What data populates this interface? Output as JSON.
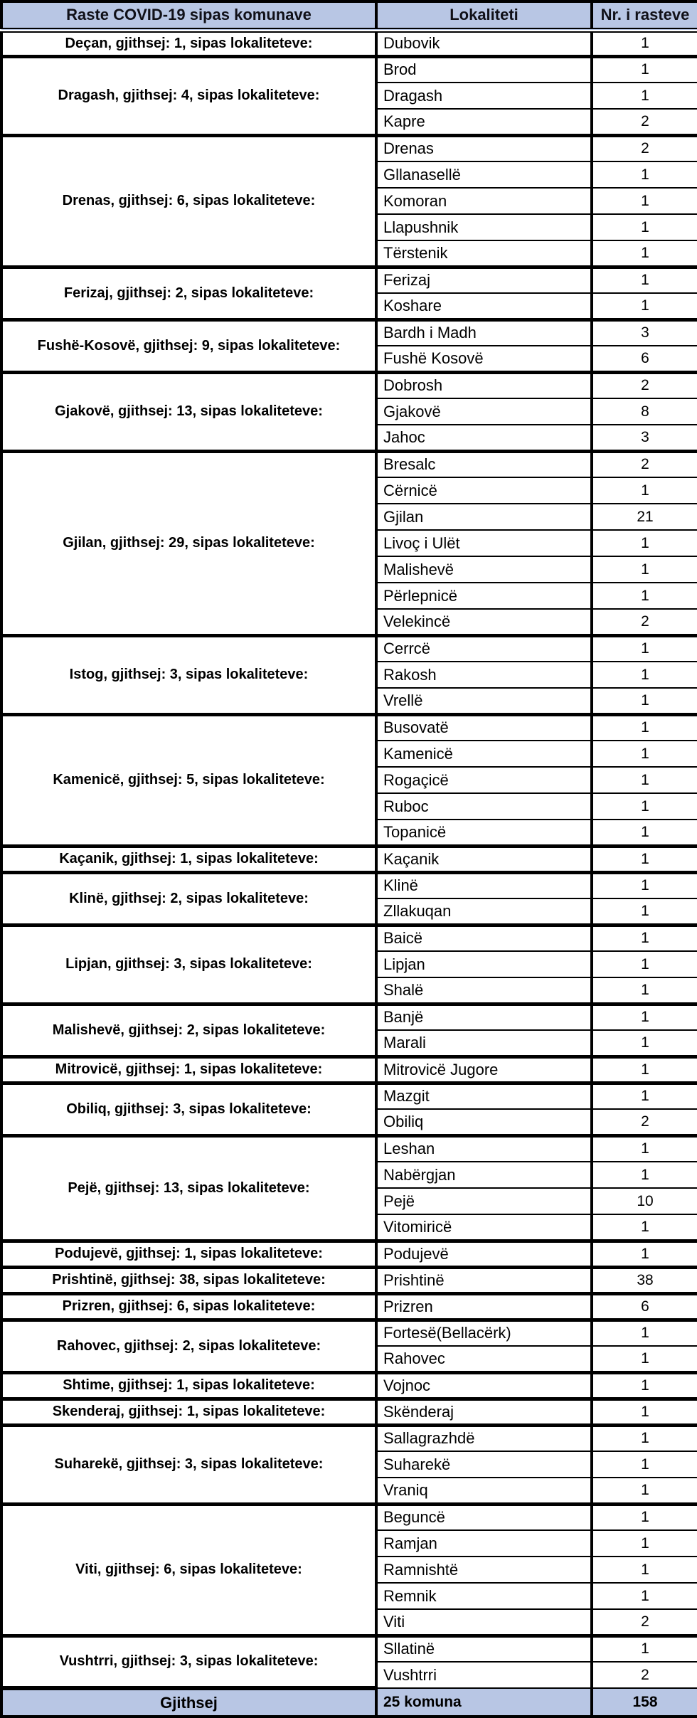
{
  "colors": {
    "header_bg": "#b8c6e4",
    "row_bg": "#ffffff",
    "border": "#000000",
    "text": "#000000"
  },
  "table": {
    "headers": [
      "Raste COVID-19 sipas komunave",
      "Lokaliteti",
      "Nr. i rasteve"
    ],
    "groups": [
      {
        "label": "Deçan, gjithsej: 1, sipas lokaliteteve:",
        "rows": [
          {
            "lokaliteti": "Dubovik",
            "raste": 1
          }
        ]
      },
      {
        "label": "Dragash, gjithsej: 4, sipas lokaliteteve:",
        "rows": [
          {
            "lokaliteti": "Brod",
            "raste": 1
          },
          {
            "lokaliteti": "Dragash",
            "raste": 1
          },
          {
            "lokaliteti": "Kapre",
            "raste": 2
          }
        ]
      },
      {
        "label": "Drenas, gjithsej: 6, sipas lokaliteteve:",
        "rows": [
          {
            "lokaliteti": "Drenas",
            "raste": 2
          },
          {
            "lokaliteti": "Gllanasellë",
            "raste": 1
          },
          {
            "lokaliteti": "Komoran",
            "raste": 1
          },
          {
            "lokaliteti": "Llapushnik",
            "raste": 1
          },
          {
            "lokaliteti": "Tërstenik",
            "raste": 1
          }
        ]
      },
      {
        "label": "Ferizaj, gjithsej: 2, sipas lokaliteteve:",
        "rows": [
          {
            "lokaliteti": "Ferizaj",
            "raste": 1
          },
          {
            "lokaliteti": "Koshare",
            "raste": 1
          }
        ]
      },
      {
        "label": "Fushë-Kosovë, gjithsej: 9, sipas lokaliteteve:",
        "rows": [
          {
            "lokaliteti": "Bardh i Madh",
            "raste": 3
          },
          {
            "lokaliteti": "Fushë Kosovë",
            "raste": 6
          }
        ]
      },
      {
        "label": "Gjakovë, gjithsej: 13, sipas lokaliteteve:",
        "rows": [
          {
            "lokaliteti": "Dobrosh",
            "raste": 2
          },
          {
            "lokaliteti": "Gjakovë",
            "raste": 8
          },
          {
            "lokaliteti": "Jahoc",
            "raste": 3
          }
        ]
      },
      {
        "label": "Gjilan, gjithsej: 29, sipas lokaliteteve:",
        "rows": [
          {
            "lokaliteti": "Bresalc",
            "raste": 2
          },
          {
            "lokaliteti": "Cërnicë",
            "raste": 1
          },
          {
            "lokaliteti": "Gjilan",
            "raste": 21
          },
          {
            "lokaliteti": "Livoç i Ulët",
            "raste": 1
          },
          {
            "lokaliteti": "Malishevë",
            "raste": 1
          },
          {
            "lokaliteti": "Përlepnicë",
            "raste": 1
          },
          {
            "lokaliteti": "Velekincë",
            "raste": 2
          }
        ]
      },
      {
        "label": "Istog, gjithsej: 3, sipas lokaliteteve:",
        "rows": [
          {
            "lokaliteti": "Cerrcë",
            "raste": 1
          },
          {
            "lokaliteti": "Rakosh",
            "raste": 1
          },
          {
            "lokaliteti": "Vrellë",
            "raste": 1
          }
        ]
      },
      {
        "label": "Kamenicë, gjithsej: 5, sipas lokaliteteve:",
        "rows": [
          {
            "lokaliteti": "Busovatë",
            "raste": 1
          },
          {
            "lokaliteti": "Kamenicë",
            "raste": 1
          },
          {
            "lokaliteti": "Rogaçicë",
            "raste": 1
          },
          {
            "lokaliteti": "Ruboc",
            "raste": 1
          },
          {
            "lokaliteti": "Topanicë",
            "raste": 1
          }
        ]
      },
      {
        "label": "Kaçanik, gjithsej: 1, sipas lokaliteteve:",
        "rows": [
          {
            "lokaliteti": "Kaçanik",
            "raste": 1
          }
        ]
      },
      {
        "label": "Klinë, gjithsej: 2, sipas lokaliteteve:",
        "rows": [
          {
            "lokaliteti": "Klinë",
            "raste": 1
          },
          {
            "lokaliteti": "Zllakuqan",
            "raste": 1
          }
        ]
      },
      {
        "label": "Lipjan, gjithsej: 3, sipas lokaliteteve:",
        "rows": [
          {
            "lokaliteti": "Baicë",
            "raste": 1
          },
          {
            "lokaliteti": "Lipjan",
            "raste": 1
          },
          {
            "lokaliteti": "Shalë",
            "raste": 1
          }
        ]
      },
      {
        "label": "Malishevë, gjithsej: 2, sipas lokaliteteve:",
        "rows": [
          {
            "lokaliteti": "Banjë",
            "raste": 1
          },
          {
            "lokaliteti": "Marali",
            "raste": 1
          }
        ]
      },
      {
        "label": "Mitrovicë, gjithsej: 1, sipas lokaliteteve:",
        "rows": [
          {
            "lokaliteti": "Mitrovicë Jugore",
            "raste": 1
          }
        ]
      },
      {
        "label": "Obiliq, gjithsej: 3, sipas lokaliteteve:",
        "rows": [
          {
            "lokaliteti": "Mazgit",
            "raste": 1
          },
          {
            "lokaliteti": "Obiliq",
            "raste": 2
          }
        ]
      },
      {
        "label": "Pejë, gjithsej: 13, sipas lokaliteteve:",
        "rows": [
          {
            "lokaliteti": "Leshan",
            "raste": 1
          },
          {
            "lokaliteti": "Nabërgjan",
            "raste": 1
          },
          {
            "lokaliteti": "Pejë",
            "raste": 10
          },
          {
            "lokaliteti": "Vitomiricë",
            "raste": 1
          }
        ]
      },
      {
        "label": "Podujevë, gjithsej: 1, sipas lokaliteteve:",
        "rows": [
          {
            "lokaliteti": "Podujevë",
            "raste": 1
          }
        ]
      },
      {
        "label": "Prishtinë, gjithsej: 38, sipas lokaliteteve:",
        "rows": [
          {
            "lokaliteti": "Prishtinë",
            "raste": 38
          }
        ]
      },
      {
        "label": "Prizren, gjithsej: 6, sipas lokaliteteve:",
        "rows": [
          {
            "lokaliteti": "Prizren",
            "raste": 6
          }
        ]
      },
      {
        "label": "Rahovec, gjithsej: 2, sipas lokaliteteve:",
        "rows": [
          {
            "lokaliteti": "Fortesë(Bellacërk)",
            "raste": 1
          },
          {
            "lokaliteti": "Rahovec",
            "raste": 1
          }
        ]
      },
      {
        "label": "Shtime, gjithsej: 1, sipas lokaliteteve:",
        "rows": [
          {
            "lokaliteti": "Vojnoc",
            "raste": 1
          }
        ]
      },
      {
        "label": "Skenderaj, gjithsej: 1, sipas lokaliteteve:",
        "rows": [
          {
            "lokaliteti": "Skënderaj",
            "raste": 1
          }
        ]
      },
      {
        "label": "Suharekë, gjithsej: 3, sipas lokaliteteve:",
        "rows": [
          {
            "lokaliteti": "Sallagrazhdë",
            "raste": 1
          },
          {
            "lokaliteti": "Suharekë",
            "raste": 1
          },
          {
            "lokaliteti": "Vraniq",
            "raste": 1
          }
        ]
      },
      {
        "label": "Viti, gjithsej: 6, sipas lokaliteteve:",
        "rows": [
          {
            "lokaliteti": "Beguncë",
            "raste": 1
          },
          {
            "lokaliteti": "Ramjan",
            "raste": 1
          },
          {
            "lokaliteti": "Ramnishtë",
            "raste": 1
          },
          {
            "lokaliteti": "Remnik",
            "raste": 1
          },
          {
            "lokaliteti": "Viti",
            "raste": 2
          }
        ]
      },
      {
        "label": "Vushtrri, gjithsej: 3, sipas lokaliteteve:",
        "rows": [
          {
            "lokaliteti": "Sllatinë",
            "raste": 1
          },
          {
            "lokaliteti": "Vushtrri",
            "raste": 2
          }
        ]
      }
    ],
    "footer": {
      "label": "Gjithsej",
      "komuna": "25 komuna",
      "total": 158
    }
  }
}
